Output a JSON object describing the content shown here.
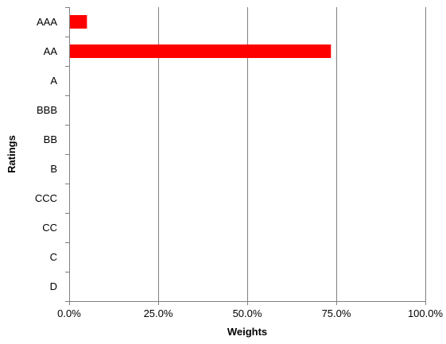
{
  "chart_data": {
    "type": "bar",
    "orientation": "horizontal",
    "title": "",
    "xlabel": "Weights",
    "ylabel": "Ratings",
    "categories": [
      "AAA",
      "AA",
      "A",
      "BBB",
      "BB",
      "B",
      "CCC",
      "CC",
      "C",
      "D"
    ],
    "series": [
      {
        "values": [
          5.0,
          73.5,
          0,
          0,
          0,
          0,
          0,
          0,
          0,
          0
        ],
        "color": "#ff0000"
      }
    ],
    "xlim": [
      0,
      100
    ],
    "x_ticks": [
      0,
      25,
      50,
      75,
      100
    ],
    "x_tick_labels": [
      "0.0%",
      "25.0%",
      "50.0%",
      "75.0%",
      "100.0%"
    ],
    "grid": "vertical",
    "legend": "none",
    "gridline_color": "#808080"
  }
}
